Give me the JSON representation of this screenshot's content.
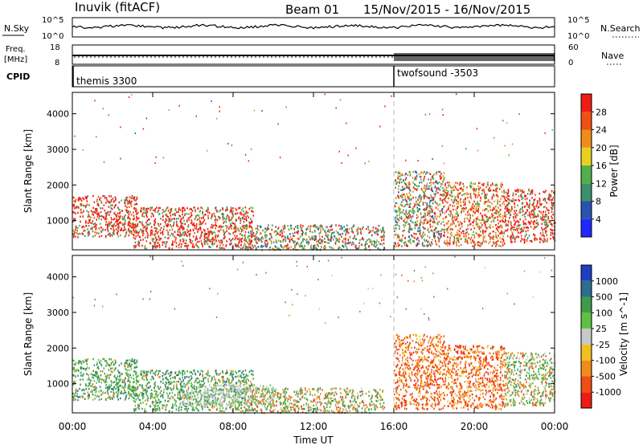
{
  "header": {
    "station": "Inuvik (fitACF)",
    "beam": "Beam 01",
    "dates": "15/Nov/2015 - 16/Nov/2015"
  },
  "strips": {
    "nsky_label": "N.Sky",
    "nsearch_label": "N.Search",
    "noise_left_ticks": [
      "10^5",
      "10^0"
    ],
    "noise_right_ticks": [
      "10^5",
      "10^0"
    ],
    "freq_label_top": "Freq.",
    "freq_label_bottom": "[MHz]",
    "freq_ticks": [
      "18",
      "8"
    ],
    "nave_label": "Nave",
    "nave_ticks": [
      "60",
      "0"
    ],
    "cpid_label": "CPID",
    "cpid_segments": [
      {
        "name": "themis 3300",
        "start_hour": 0
      },
      {
        "name": "twofsound -3503",
        "start_hour": 16
      }
    ]
  },
  "colors": {
    "grid": "#b8b8b8",
    "ground_scatter": "#c8c8c8",
    "power_scale": [
      "#1f28ff",
      "#2a52b0",
      "#3d8f6b",
      "#52b04a",
      "#e8d020",
      "#f08c1c",
      "#f05014",
      "#ee1c14"
    ],
    "velocity_scale": [
      "#1f3fc0",
      "#2d6e8e",
      "#3f9a4c",
      "#5fc043",
      "#c8c8c8",
      "#f0c020",
      "#f08c18",
      "#f04e14",
      "#ee1c14"
    ]
  },
  "chart_data": [
    {
      "type": "heatmap",
      "panel": "power",
      "xlabel": "",
      "ylabel": "Slant Range [km]",
      "ylim": [
        180,
        4600
      ],
      "xlim_hours": [
        0,
        24
      ],
      "y_ticks": [
        "1000",
        "2000",
        "3000",
        "4000"
      ],
      "colorbar": {
        "label": "Power [dB]",
        "levels": [
          "4",
          "8",
          "12",
          "16",
          "20",
          "24",
          "28"
        ],
        "range": [
          0,
          32
        ]
      },
      "control_program_change_hour": 16,
      "echo_regions": [
        {
          "t0": 0.0,
          "t1": 3.2,
          "r0": 560,
          "r1": 1720,
          "level": "high"
        },
        {
          "t0": 3.0,
          "t1": 9.0,
          "r0": 240,
          "r1": 1400,
          "level": "high"
        },
        {
          "t0": 8.5,
          "t1": 15.5,
          "r0": 200,
          "r1": 900,
          "level": "mixed"
        },
        {
          "t0": 16.0,
          "t1": 18.5,
          "r0": 300,
          "r1": 2400,
          "level": "mixed"
        },
        {
          "t0": 18.5,
          "t1": 21.5,
          "r0": 300,
          "r1": 2100,
          "level": "moderate"
        },
        {
          "t0": 21.5,
          "t1": 24.0,
          "r0": 400,
          "r1": 1900,
          "level": "high"
        }
      ]
    },
    {
      "type": "heatmap",
      "panel": "velocity",
      "xlabel": "Time UT",
      "ylabel": "Slant Range [km]",
      "ylim": [
        180,
        4600
      ],
      "xlim_hours": [
        0,
        24
      ],
      "x_ticks": [
        "00:00",
        "04:00",
        "08:00",
        "12:00",
        "16:00",
        "20:00",
        "00:00"
      ],
      "y_ticks": [
        "1000",
        "2000",
        "3000",
        "4000"
      ],
      "colorbar": {
        "label": "Velocity [m s^-1]",
        "levels": [
          "1000",
          "500",
          "100",
          "25",
          "-25",
          "-100",
          "-500",
          "-1000"
        ]
      },
      "control_program_change_hour": 16,
      "echo_regions": [
        {
          "t0": 0.0,
          "t1": 3.2,
          "r0": 560,
          "r1": 1720,
          "level": "positive"
        },
        {
          "t0": 3.0,
          "t1": 9.0,
          "r0": 240,
          "r1": 1400,
          "level": "positive"
        },
        {
          "t0": 5.5,
          "t1": 10.0,
          "r0": 400,
          "r1": 1000,
          "level": "ground"
        },
        {
          "t0": 8.5,
          "t1": 15.5,
          "r0": 200,
          "r1": 900,
          "level": "mixed"
        },
        {
          "t0": 16.0,
          "t1": 18.5,
          "r0": 300,
          "r1": 2400,
          "level": "negative"
        },
        {
          "t0": 18.5,
          "t1": 21.5,
          "r0": 300,
          "r1": 2100,
          "level": "negative"
        },
        {
          "t0": 21.5,
          "t1": 24.0,
          "r0": 400,
          "r1": 1900,
          "level": "mixed"
        }
      ]
    }
  ]
}
